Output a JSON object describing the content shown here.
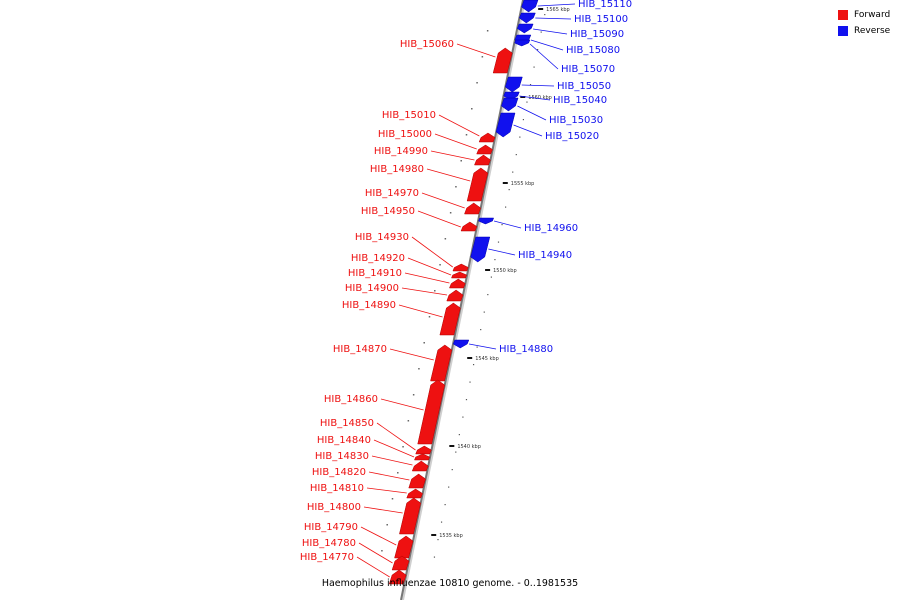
{
  "caption": "Haemophilus influenzae 10810 genome. - 0..1981535",
  "legend": [
    {
      "label": "Forward",
      "color": "#ee1111"
    },
    {
      "label": "Reverse",
      "color": "#1111ee"
    }
  ],
  "ticks": [
    "1565 kbp",
    "1560 kbp",
    "1555 kbp",
    "1550 kbp",
    "1545 kbp",
    "1540 kbp",
    "1535 kbp"
  ],
  "genes": [
    {
      "label": "HIB_15110",
      "strand": "reverse"
    },
    {
      "label": "HIB_15100",
      "strand": "reverse"
    },
    {
      "label": "HIB_15090",
      "strand": "reverse"
    },
    {
      "label": "HIB_15080",
      "strand": "reverse"
    },
    {
      "label": "HIB_15070",
      "strand": "reverse"
    },
    {
      "label": "HIB_15060",
      "strand": "forward"
    },
    {
      "label": "HIB_15050",
      "strand": "reverse"
    },
    {
      "label": "HIB_15040",
      "strand": "reverse"
    },
    {
      "label": "HIB_15030",
      "strand": "reverse"
    },
    {
      "label": "HIB_15020",
      "strand": "reverse"
    },
    {
      "label": "HIB_15010",
      "strand": "forward"
    },
    {
      "label": "HIB_15000",
      "strand": "forward"
    },
    {
      "label": "HIB_14990",
      "strand": "forward"
    },
    {
      "label": "HIB_14980",
      "strand": "forward"
    },
    {
      "label": "HIB_14970",
      "strand": "forward"
    },
    {
      "label": "HIB_14960",
      "strand": "reverse"
    },
    {
      "label": "HIB_14950",
      "strand": "forward"
    },
    {
      "label": "HIB_14940",
      "strand": "reverse"
    },
    {
      "label": "HIB_14930",
      "strand": "forward"
    },
    {
      "label": "HIB_14920",
      "strand": "forward"
    },
    {
      "label": "HIB_14910",
      "strand": "forward"
    },
    {
      "label": "HIB_14900",
      "strand": "forward"
    },
    {
      "label": "HIB_14890",
      "strand": "forward"
    },
    {
      "label": "HIB_14880",
      "strand": "reverse"
    },
    {
      "label": "HIB_14870",
      "strand": "forward"
    },
    {
      "label": "HIB_14860",
      "strand": "forward"
    },
    {
      "label": "HIB_14850",
      "strand": "forward"
    },
    {
      "label": "HIB_14840",
      "strand": "forward"
    },
    {
      "label": "HIB_14830",
      "strand": "forward"
    },
    {
      "label": "HIB_14820",
      "strand": "forward"
    },
    {
      "label": "HIB_14810",
      "strand": "forward"
    },
    {
      "label": "HIB_14800",
      "strand": "forward"
    },
    {
      "label": "HIB_14790",
      "strand": "forward"
    },
    {
      "label": "HIB_14780",
      "strand": "forward"
    },
    {
      "label": "HIB_14770",
      "strand": "forward"
    }
  ]
}
